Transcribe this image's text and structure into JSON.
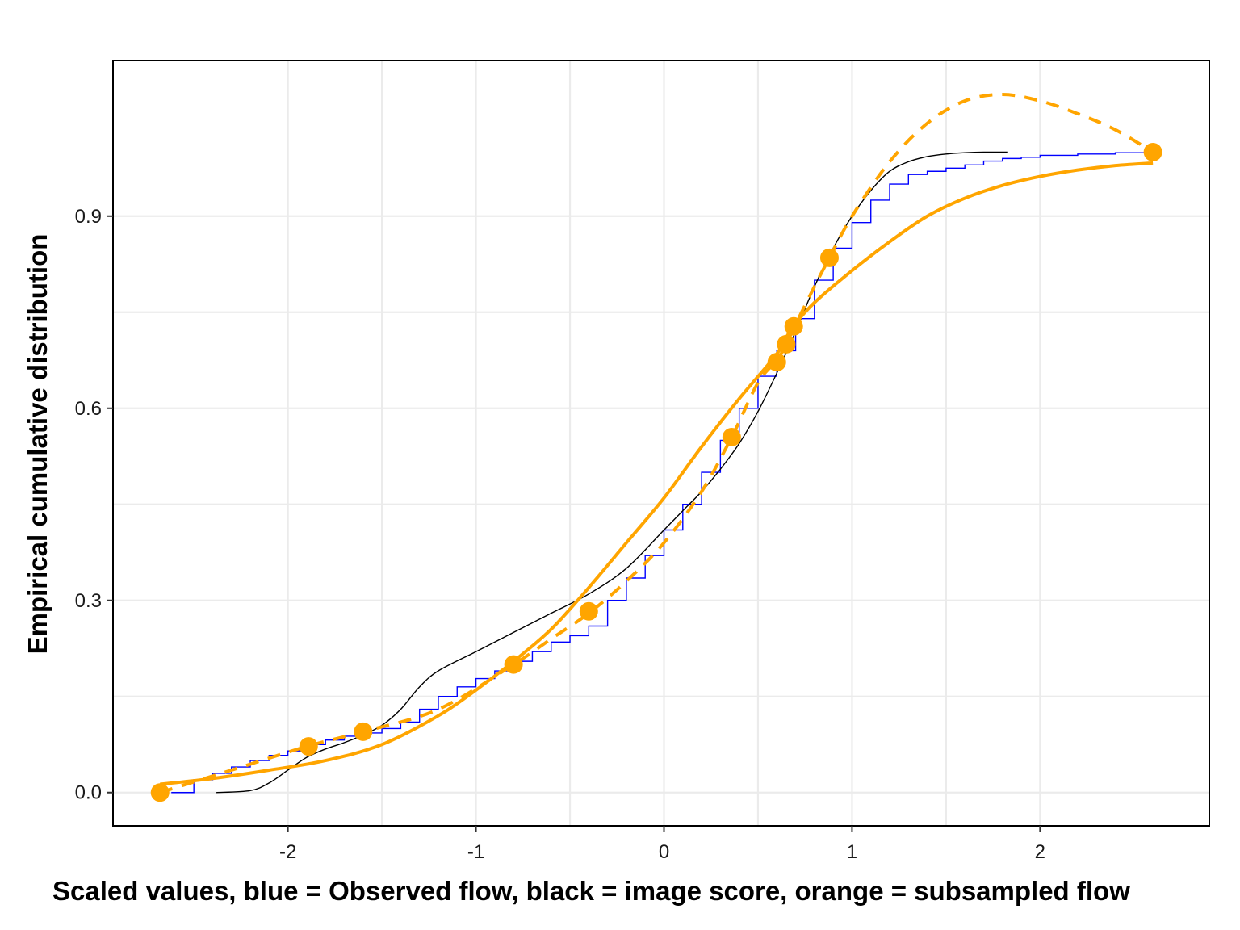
{
  "chart_data": {
    "type": "line",
    "title": "",
    "xlabel": "Scaled values, blue = Observed flow, black = image score, orange = subsampled flow",
    "ylabel": "Empirical cumulative distribution",
    "xlim": [
      -2.93,
      2.9
    ],
    "ylim": [
      -0.052,
      1.143
    ],
    "x_ticks": [
      -2,
      -1,
      0,
      1,
      2
    ],
    "x_tick_labels": [
      "-2",
      "-1",
      "0",
      "1",
      "2"
    ],
    "y_ticks": [
      0.0,
      0.3,
      0.6,
      0.9
    ],
    "y_tick_labels": [
      "0.0",
      "0.3",
      "0.6",
      "0.9"
    ],
    "grid": true,
    "legend": "none",
    "series": [
      {
        "style": "step",
        "color": "#0000ff",
        "x": [
          -2.62,
          -2.5,
          -2.4,
          -2.3,
          -2.2,
          -2.1,
          -2.0,
          -1.9,
          -1.8,
          -1.7,
          -1.6,
          -1.5,
          -1.4,
          -1.3,
          -1.2,
          -1.1,
          -1.0,
          -0.9,
          -0.8,
          -0.7,
          -0.6,
          -0.5,
          -0.4,
          -0.3,
          -0.2,
          -0.1,
          0.0,
          0.1,
          0.2,
          0.3,
          0.4,
          0.5,
          0.6,
          0.7,
          0.8,
          0.9,
          1.0,
          1.1,
          1.2,
          1.3,
          1.4,
          1.5,
          1.6,
          1.7,
          1.8,
          1.9,
          2.0,
          2.2,
          2.4,
          2.6
        ],
        "y": [
          0.0,
          0.02,
          0.03,
          0.04,
          0.05,
          0.058,
          0.065,
          0.075,
          0.082,
          0.088,
          0.093,
          0.1,
          0.11,
          0.13,
          0.15,
          0.165,
          0.178,
          0.19,
          0.205,
          0.22,
          0.235,
          0.245,
          0.26,
          0.3,
          0.335,
          0.37,
          0.41,
          0.45,
          0.5,
          0.55,
          0.6,
          0.65,
          0.69,
          0.74,
          0.8,
          0.85,
          0.89,
          0.925,
          0.95,
          0.965,
          0.97,
          0.975,
          0.98,
          0.986,
          0.99,
          0.992,
          0.995,
          0.997,
          0.999,
          1.0
        ]
      },
      {
        "style": "thin",
        "color": "#000000",
        "x": [
          -2.38,
          -2.2,
          -2.1,
          -2.0,
          -1.9,
          -1.8,
          -1.7,
          -1.6,
          -1.5,
          -1.4,
          -1.3,
          -1.2,
          -1.0,
          -0.8,
          -0.6,
          -0.4,
          -0.2,
          0.0,
          0.1,
          0.2,
          0.3,
          0.4,
          0.5,
          0.6,
          0.7,
          0.8,
          0.9,
          1.0,
          1.1,
          1.2,
          1.3,
          1.4,
          1.5,
          1.6,
          1.7,
          1.83
        ],
        "y": [
          0.0,
          0.003,
          0.015,
          0.035,
          0.055,
          0.068,
          0.078,
          0.09,
          0.105,
          0.13,
          0.165,
          0.19,
          0.22,
          0.25,
          0.28,
          0.31,
          0.35,
          0.41,
          0.44,
          0.47,
          0.505,
          0.545,
          0.595,
          0.655,
          0.72,
          0.79,
          0.85,
          0.9,
          0.94,
          0.97,
          0.985,
          0.993,
          0.997,
          0.999,
          1.0,
          1.0
        ]
      },
      {
        "style": "thick",
        "color": "#ffa500",
        "x": [
          -2.68,
          -2.4,
          -2.1,
          -1.8,
          -1.5,
          -1.2,
          -1.0,
          -0.8,
          -0.6,
          -0.4,
          -0.2,
          0.0,
          0.2,
          0.4,
          0.6,
          0.68,
          0.8,
          1.0,
          1.2,
          1.4,
          1.6,
          1.8,
          2.0,
          2.2,
          2.4,
          2.6
        ],
        "y": [
          0.013,
          0.022,
          0.035,
          0.05,
          0.075,
          0.12,
          0.16,
          0.205,
          0.255,
          0.32,
          0.39,
          0.46,
          0.54,
          0.615,
          0.685,
          0.725,
          0.765,
          0.815,
          0.86,
          0.9,
          0.928,
          0.948,
          0.962,
          0.972,
          0.979,
          0.983
        ]
      },
      {
        "style": "dashed",
        "color": "#ffa500",
        "x": [
          -2.68,
          -2.3,
          -1.9,
          -1.6,
          -1.2,
          -0.8,
          -0.6,
          -0.4,
          -0.2,
          0.0,
          0.2,
          0.36,
          0.5,
          0.6,
          0.65,
          0.69,
          0.8,
          0.88,
          1.0,
          1.2,
          1.4,
          1.6,
          1.8,
          2.0,
          2.2,
          2.4,
          2.6
        ],
        "y": [
          0.0,
          0.035,
          0.072,
          0.095,
          0.13,
          0.2,
          0.24,
          0.28,
          0.33,
          0.39,
          0.47,
          0.555,
          0.64,
          0.675,
          0.7,
          0.725,
          0.79,
          0.835,
          0.9,
          0.985,
          1.045,
          1.08,
          1.09,
          1.08,
          1.06,
          1.035,
          1.0
        ]
      },
      {
        "style": "points",
        "color": "#ffa500",
        "x": [
          -2.68,
          -1.89,
          -1.6,
          -0.8,
          -0.4,
          0.36,
          0.6,
          0.65,
          0.69,
          0.88,
          2.6
        ],
        "y": [
          0.0,
          0.072,
          0.095,
          0.2,
          0.283,
          0.555,
          0.672,
          0.7,
          0.728,
          0.835,
          1.0
        ]
      }
    ]
  }
}
